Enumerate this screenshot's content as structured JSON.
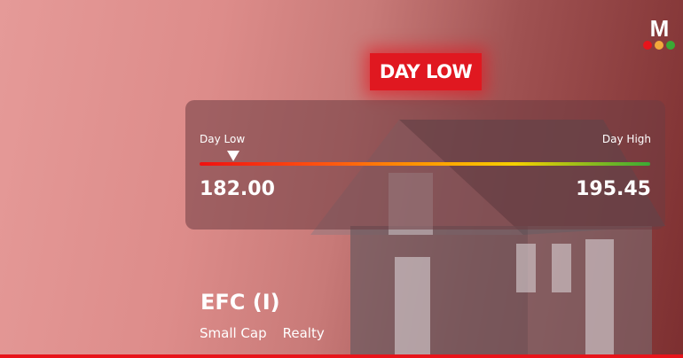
{
  "logo": {
    "letter": "M",
    "dot_colors": [
      "#e8141b",
      "#f2a93b",
      "#3aaa35"
    ]
  },
  "badge": {
    "label": "DAY LOW",
    "color": "#e01820"
  },
  "range": {
    "low_label": "Day Low",
    "high_label": "Day High",
    "low_value": "182.00",
    "high_value": "195.45",
    "marker_percent": 7.5
  },
  "stock": {
    "name": "EFC (I)",
    "cap": "Small Cap",
    "sector": "Realty"
  }
}
